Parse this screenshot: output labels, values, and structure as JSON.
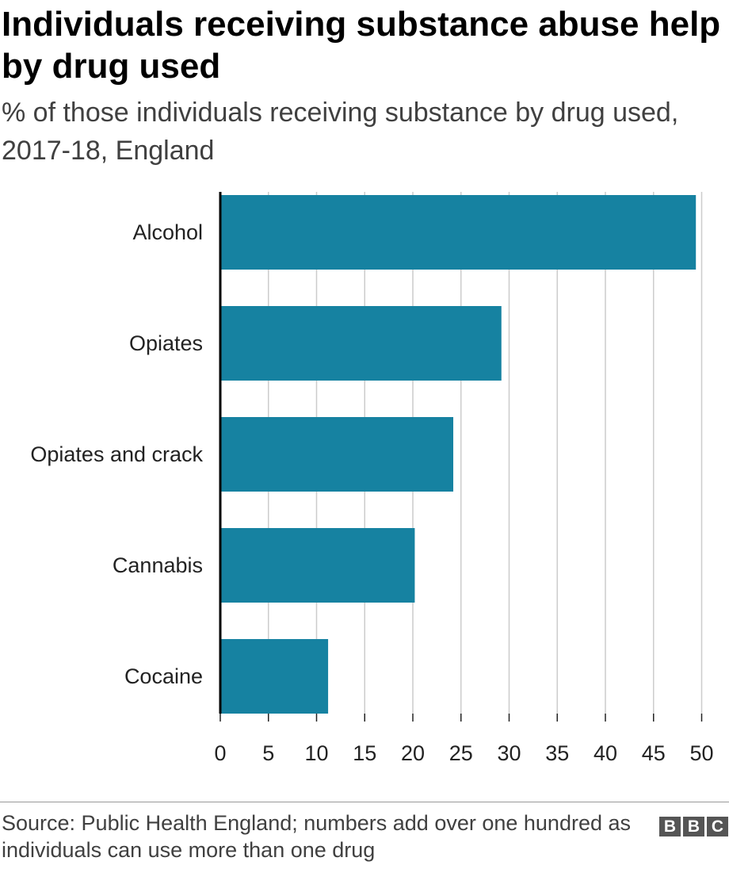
{
  "chart_data": {
    "type": "bar",
    "orientation": "horizontal",
    "title": "Individuals receiving substance abuse help by drug used",
    "subtitle": "% of those individuals receiving substance by drug used, 2017-18, England",
    "categories": [
      "Alcohol",
      "Opiates",
      "Opiates and crack",
      "Cannabis",
      "Cocaine"
    ],
    "values": [
      49.4,
      29.2,
      24.2,
      20.2,
      11.2
    ],
    "xlim": [
      0,
      50
    ],
    "xticks": [
      "0",
      "5",
      "10",
      "15",
      "20",
      "25",
      "30",
      "35",
      "40",
      "45",
      "50"
    ],
    "grid": true,
    "bar_color": "#1682a1"
  },
  "footer": {
    "source": "Source: Public Health England; numbers add over one hundred as individuals can use more than one drug",
    "logo": [
      "B",
      "B",
      "C"
    ]
  }
}
